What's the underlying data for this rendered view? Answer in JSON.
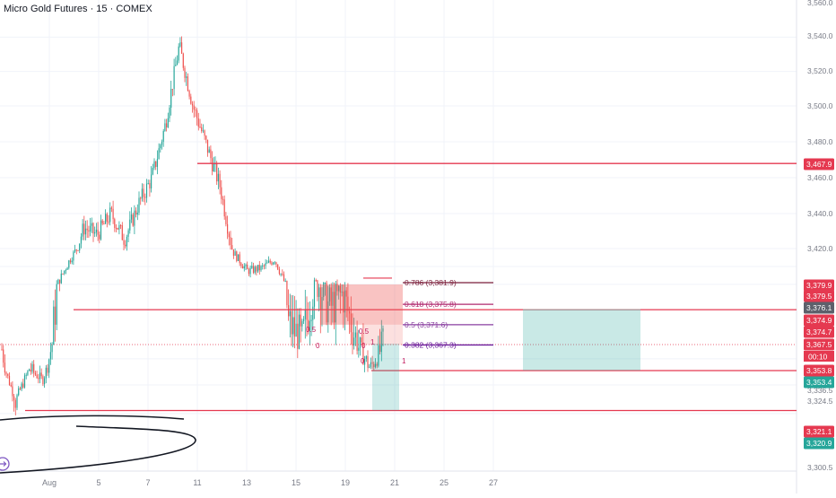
{
  "header": {
    "title": "Micro Gold Futures · 15 · COMEX"
  },
  "colors": {
    "up": "#26a69a",
    "down": "#ef5350",
    "level": "#e53950",
    "text": "#131722",
    "axis": "#787b86",
    "grid": "#f0f3fa"
  },
  "chart_data": {
    "type": "candlestick",
    "symbol": "Micro Gold Futures",
    "interval": "15",
    "exchange": "COMEX",
    "x_ticks": [
      "Aug",
      "5",
      "7",
      "11",
      "13",
      "15",
      "19",
      "21",
      "25",
      "27"
    ],
    "y_ticks": [
      "3,300.5",
      "3,320.9",
      "3,324.5",
      "3,336.5",
      "3,353.4",
      "3,353.8",
      "3,367.5",
      "3,374.7",
      "3,374.9",
      "3,376.1",
      "3,379.5",
      "3,379.9",
      "3,420.0",
      "3,440.0",
      "3,460.0",
      "3,467.9",
      "3,480.0",
      "3,500.0",
      "3,520.0",
      "3,540.0",
      "3,560.0"
    ],
    "ylim": [
      3300.5,
      3560.0
    ],
    "price_path": [
      {
        "date": "Jul 31",
        "price": 3365
      },
      {
        "date": "Aug 1",
        "price": 3325
      },
      {
        "date": "Aug 1",
        "price": 3355
      },
      {
        "date": "Aug 1",
        "price": 3345
      },
      {
        "date": "Aug 2",
        "price": 3378
      },
      {
        "date": "Aug 2",
        "price": 3408
      },
      {
        "date": "Aug 4",
        "price": 3432
      },
      {
        "date": "Aug 5",
        "price": 3428
      },
      {
        "date": "Aug 6",
        "price": 3440
      },
      {
        "date": "Aug 7",
        "price": 3425
      },
      {
        "date": "Aug 7",
        "price": 3445
      },
      {
        "date": "Aug 8",
        "price": 3460
      },
      {
        "date": "Aug 8",
        "price": 3490
      },
      {
        "date": "Aug 8",
        "price": 3535
      },
      {
        "date": "Aug 10",
        "price": 3500
      },
      {
        "date": "Aug 10",
        "price": 3478
      },
      {
        "date": "Aug 11",
        "price": 3455
      },
      {
        "date": "Aug 11",
        "price": 3415
      },
      {
        "date": "Aug 12",
        "price": 3395
      },
      {
        "date": "Aug 13",
        "price": 3398
      },
      {
        "date": "Aug 14",
        "price": 3408
      },
      {
        "date": "Aug 14",
        "price": 3372
      },
      {
        "date": "Aug 15",
        "price": 3368
      },
      {
        "date": "Aug 17",
        "price": 3382
      },
      {
        "date": "Aug 18",
        "price": 3375
      },
      {
        "date": "Aug 19",
        "price": 3378
      },
      {
        "date": "Aug 19",
        "price": 3368
      },
      {
        "date": "Aug 20",
        "price": 3355
      },
      {
        "date": "Aug 20",
        "price": 3367.5
      }
    ],
    "horizontal_levels": [
      {
        "price": 3467.9,
        "label": "3,467.9"
      },
      {
        "price": 3374.7,
        "label": "3,374.7"
      },
      {
        "price": 3353.8,
        "label": "3,353.8"
      },
      {
        "price": 3321.1,
        "label": "3,321.1"
      }
    ],
    "fib_labels": [
      {
        "text": "0.786 (3,381.9)",
        "price": 3381.9
      },
      {
        "text": "0.618 (3,375.8)",
        "price": 3375.8
      },
      {
        "text": "0.5 (3,371.6)",
        "price": 3371.6
      },
      {
        "text": "0.382 (3,367.3)",
        "price": 3367.3
      }
    ],
    "fib_small_labels": [
      "0.5",
      "0",
      "0",
      "0.5",
      "0",
      "1",
      "1"
    ],
    "price_scale_labels": [
      {
        "text": "3,467.9",
        "price": 3467.9,
        "color": "#e53950"
      },
      {
        "text": "3,379.9",
        "price": 3379.9,
        "color": "#e53950"
      },
      {
        "text": "3,379.5",
        "price": 3379.5,
        "color": "#e53950"
      },
      {
        "text": "3,376.1",
        "price": 3376.1,
        "color": "#5d606b"
      },
      {
        "text": "3,374.9",
        "price": 3374.9,
        "color": "#e53950"
      },
      {
        "text": "3,374.7",
        "price": 3374.7,
        "color": "#e53950"
      },
      {
        "text": "3,367.5",
        "price": 3367.5,
        "color": "#e53950"
      },
      {
        "text": "3,353.8",
        "price": 3353.8,
        "color": "#e53950"
      },
      {
        "text": "3,353.4",
        "price": 3353.4,
        "color": "#26a69a"
      },
      {
        "text": "3,321.1",
        "price": 3321.1,
        "color": "#e53950"
      },
      {
        "text": "3,320.9",
        "price": 3320.9,
        "color": "#26a69a"
      }
    ],
    "countdown": "00:10",
    "position_box": {
      "entry": 3374.7,
      "stop": 3379.9,
      "target": 3353.8
    },
    "grid": true
  }
}
